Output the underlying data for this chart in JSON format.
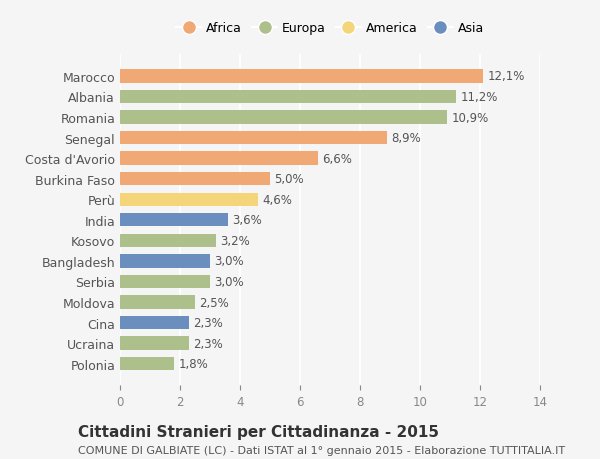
{
  "categories": [
    "Marocco",
    "Albania",
    "Romania",
    "Senegal",
    "Costa d'Avorio",
    "Burkina Faso",
    "Perù",
    "India",
    "Kosovo",
    "Bangladesh",
    "Serbia",
    "Moldova",
    "Cina",
    "Ucraina",
    "Polonia"
  ],
  "values": [
    12.1,
    11.2,
    10.9,
    8.9,
    6.6,
    5.0,
    4.6,
    3.6,
    3.2,
    3.0,
    3.0,
    2.5,
    2.3,
    2.3,
    1.8
  ],
  "continents": [
    "Africa",
    "Europa",
    "Europa",
    "Africa",
    "Africa",
    "Africa",
    "America",
    "Asia",
    "Europa",
    "Asia",
    "Europa",
    "Europa",
    "Asia",
    "Europa",
    "Europa"
  ],
  "colors": {
    "Africa": "#F0A875",
    "Europa": "#ADBF8A",
    "America": "#F5D57A",
    "Asia": "#6A8FBF"
  },
  "legend_order": [
    "Africa",
    "Europa",
    "America",
    "Asia"
  ],
  "title": "Cittadini Stranieri per Cittadinanza - 2015",
  "subtitle": "COMUNE DI GALBIATE (LC) - Dati ISTAT al 1° gennaio 2015 - Elaborazione TUTTITALIA.IT",
  "xlim": [
    0,
    14
  ],
  "xticks": [
    0,
    2,
    4,
    6,
    8,
    10,
    12,
    14
  ],
  "bg_color": "#f5f5f5",
  "title_fontsize": 11,
  "subtitle_fontsize": 8,
  "bar_label_fontsize": 8.5
}
